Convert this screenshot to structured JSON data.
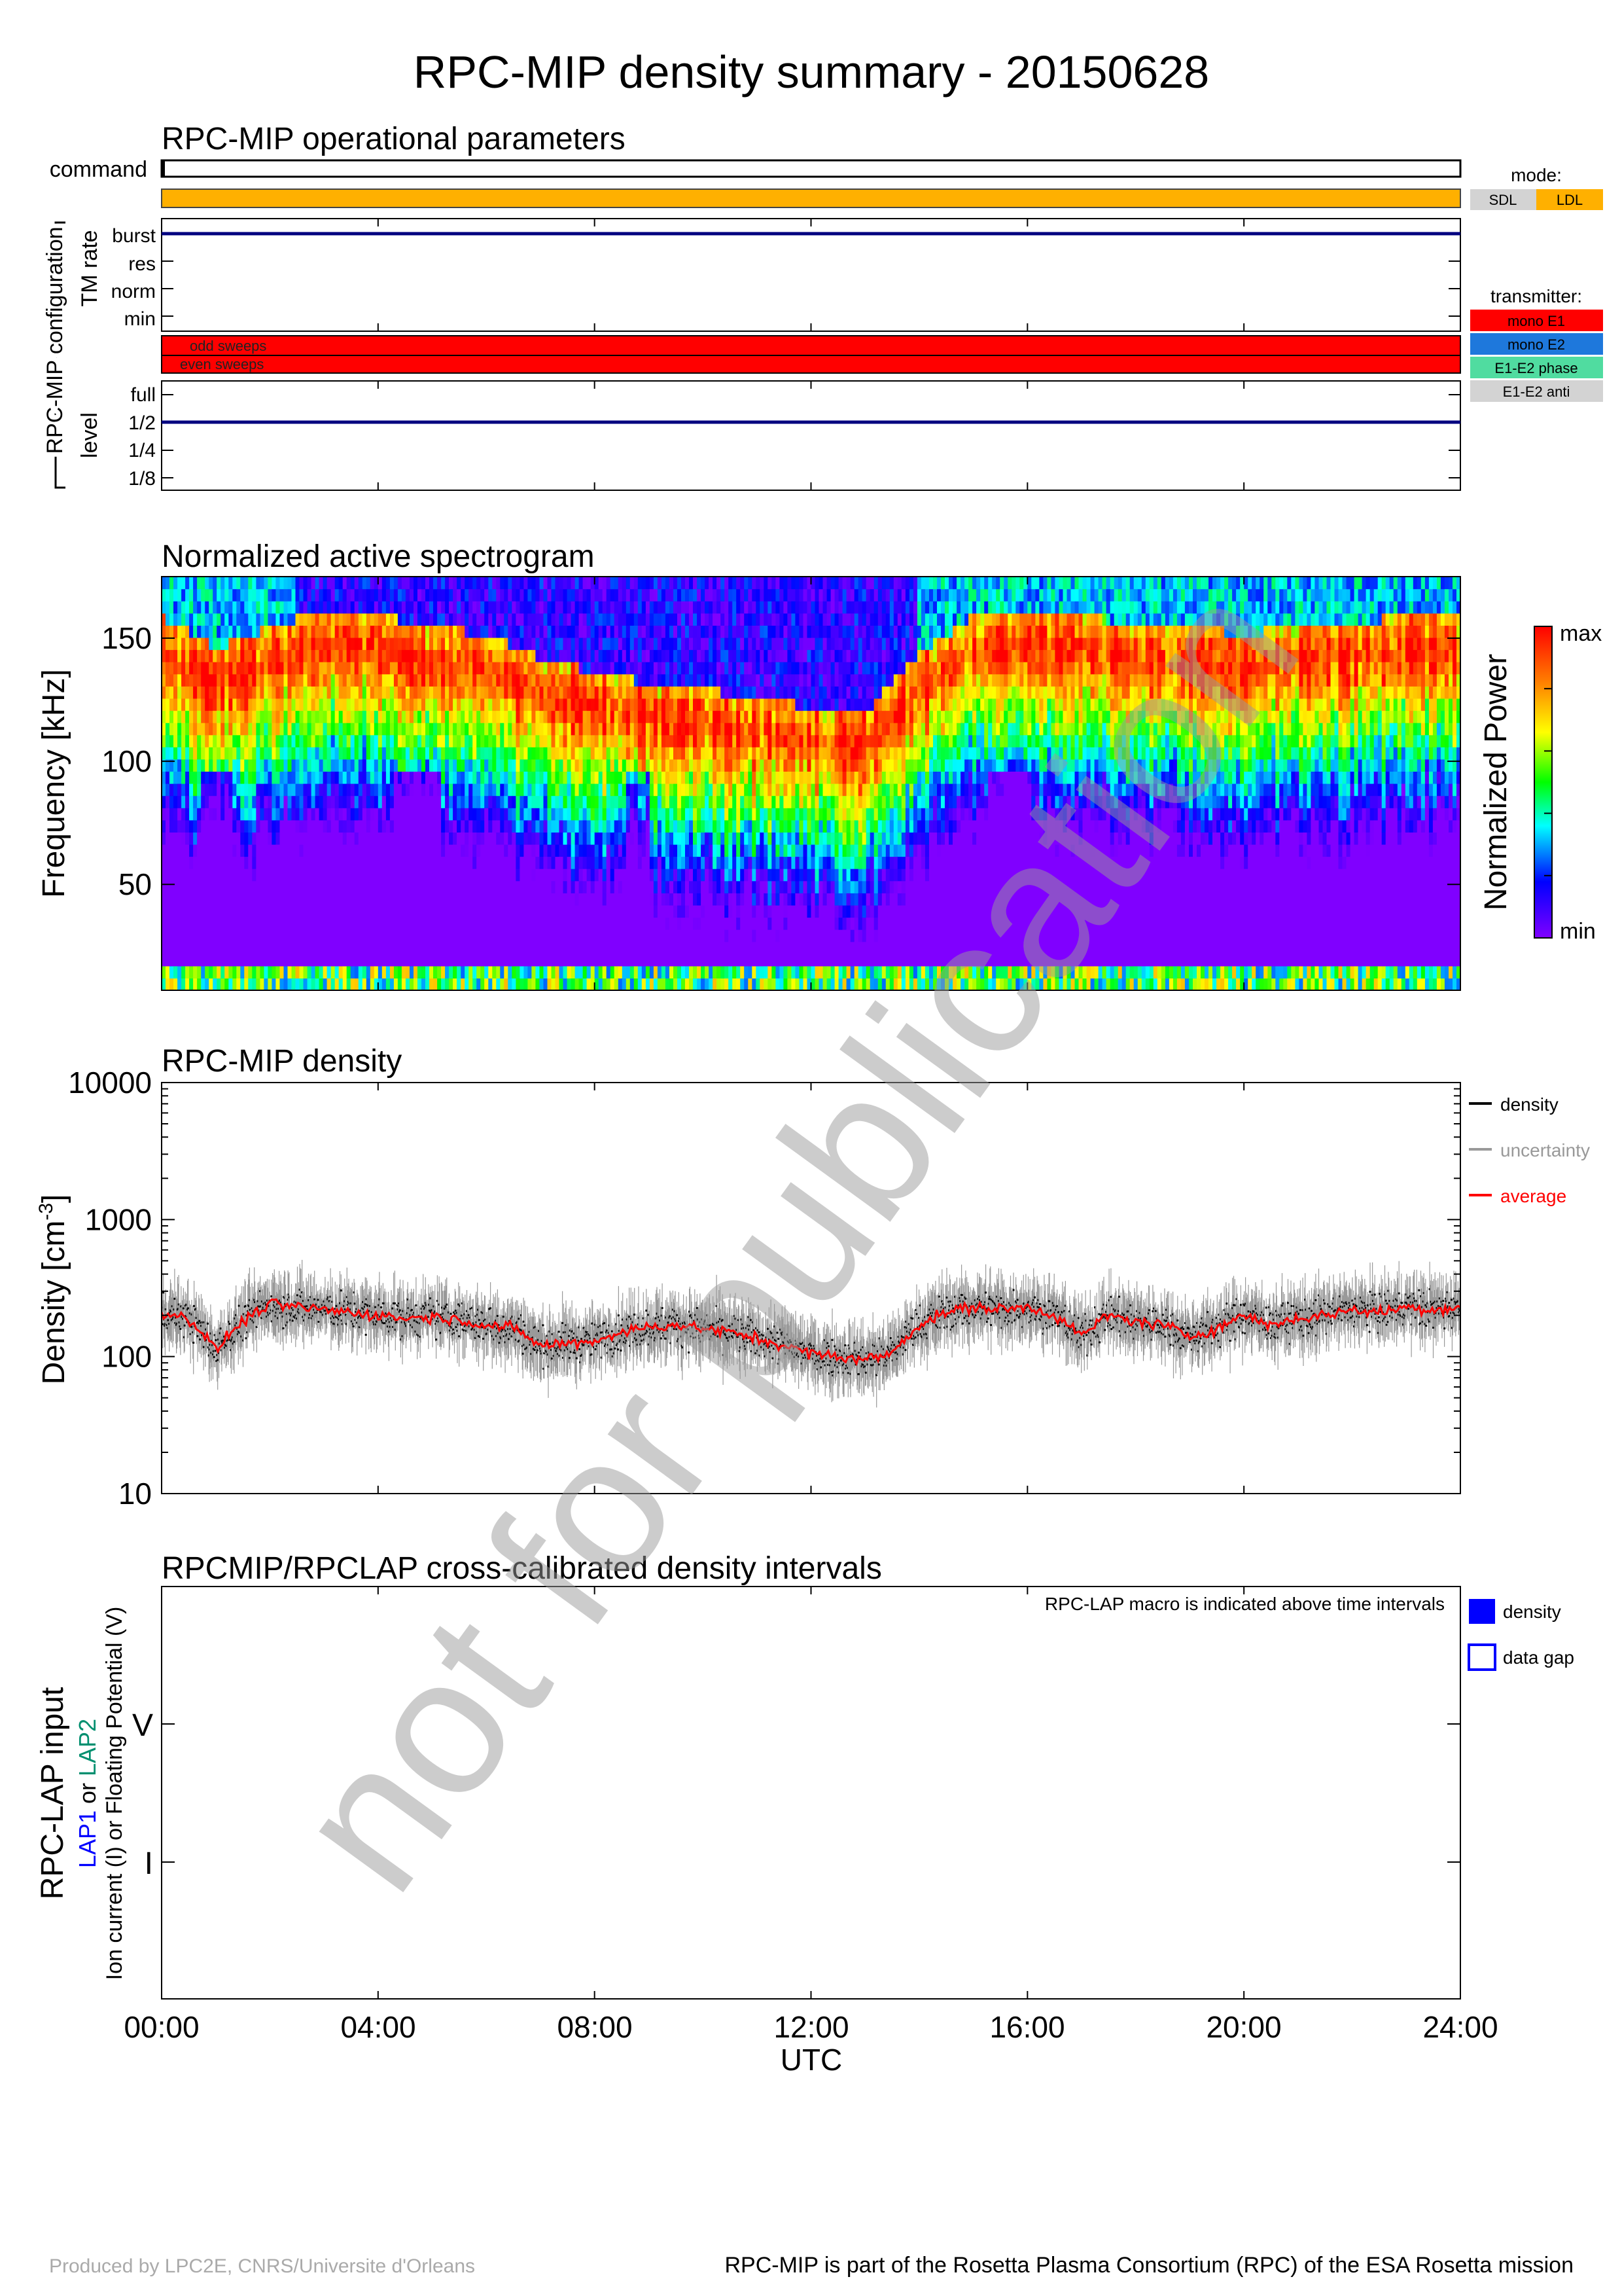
{
  "title": "RPC-MIP density summary - 20150628",
  "watermark": "not for publication",
  "footer": {
    "left": "Produced by LPC2E, CNRS/Universite d'Orleans",
    "right": "RPC-MIP is part of the Rosetta Plasma Consortium (RPC) of the ESA Rosetta mission"
  },
  "colors": {
    "ldl": "#ffb000",
    "sdl": "#d3d3d3",
    "mono_e1": "#ff0000",
    "mono_e2": "#1e78dc",
    "e1e2_phase": "#50dca0",
    "e1e2_anti": "#d3d3d3",
    "navy": "#00007f",
    "density": "#000000",
    "uncertainty": "#999999",
    "average": "#ff0000",
    "gap": "#0000ff"
  },
  "chart_data": [
    {
      "type": "table",
      "title": "RPC-MIP operational parameters",
      "command_label": "command",
      "configuration_label": "RPC-MIP configuration",
      "tm_rate": {
        "label": "TM rate",
        "levels": [
          "burst",
          "res",
          "norm",
          "min"
        ],
        "value": "burst"
      },
      "sweeps": {
        "odd": "odd sweeps",
        "even": "even sweeps",
        "transmitter": "mono E1"
      },
      "level": {
        "label": "level",
        "levels": [
          "full",
          "1/2",
          "1/4",
          "1/8"
        ],
        "value": "1/2"
      },
      "mode": {
        "label": "mode:",
        "entries": [
          "SDL",
          "LDL"
        ],
        "value": "LDL"
      },
      "transmitter": {
        "label": "transmitter:",
        "entries": [
          "mono E1",
          "mono E2",
          "E1-E2 phase",
          "E1-E2 anti"
        ]
      }
    },
    {
      "type": "heatmap",
      "title": "Normalized active spectrogram",
      "ylabel": "Frequency [kHz]",
      "ylim": [
        7,
        175
      ],
      "yticks": [
        50,
        100,
        150
      ],
      "colorbar": {
        "label": "Normalized Power",
        "max": "max",
        "min": "min"
      },
      "ridge": {
        "x": [
          0,
          1,
          2,
          3,
          4,
          5,
          6,
          7,
          8,
          9,
          10,
          11,
          12,
          13,
          14,
          15,
          16,
          17,
          18,
          19,
          20,
          21,
          22,
          23,
          24
        ],
        "y": [
          145,
          132,
          140,
          148,
          146,
          140,
          138,
          128,
          122,
          118,
          115,
          112,
          108,
          106,
          130,
          145,
          148,
          145,
          142,
          140,
          138,
          140,
          142,
          145,
          145
        ]
      }
    },
    {
      "type": "line",
      "title": "RPC-MIP density",
      "ylabel": "Density [cm",
      "ylabel_sup": "-3",
      "ylabel_end": "]",
      "yscale": "log",
      "ylim": [
        10,
        10000
      ],
      "yticks": [
        "10",
        "100",
        "1000",
        "10000"
      ],
      "series": [
        {
          "name": "density"
        },
        {
          "name": "uncertainty"
        },
        {
          "name": "average",
          "x": [
            0,
            0.5,
            1.0,
            1.5,
            2.0,
            2.5,
            3.0,
            3.5,
            4.0,
            4.5,
            5.0,
            5.5,
            6.0,
            6.5,
            7.0,
            7.5,
            8.0,
            8.5,
            9.0,
            9.5,
            10.0,
            10.5,
            11.0,
            11.5,
            12.0,
            12.5,
            13.0,
            13.5,
            14.0,
            14.5,
            15.0,
            15.5,
            16.0,
            16.5,
            17.0,
            17.5,
            18.0,
            18.5,
            19.0,
            19.5,
            20.0,
            20.5,
            21.0,
            21.5,
            22.0,
            22.5,
            23.0,
            23.5,
            24.0
          ],
          "values": [
            210,
            190,
            110,
            180,
            240,
            230,
            220,
            210,
            200,
            190,
            195,
            185,
            170,
            160,
            120,
            125,
            130,
            150,
            165,
            170,
            160,
            150,
            135,
            120,
            105,
            100,
            95,
            105,
            170,
            210,
            230,
            220,
            230,
            200,
            140,
            200,
            180,
            170,
            140,
            160,
            200,
            170,
            190,
            200,
            220,
            210,
            230,
            220,
            230
          ]
        }
      ]
    },
    {
      "type": "bar",
      "title": "RPCMIP/RPCLAP cross-calibrated density intervals",
      "ylabel": "RPC-LAP input",
      "ylabel2": [
        "LAP1",
        " or ",
        "LAP2"
      ],
      "ylabel3": "Ion current (I) or Floating Potential (V)",
      "categories": [
        "V",
        "I"
      ],
      "annotation": "RPC-LAP macro is indicated above time intervals",
      "legend": [
        "density",
        "data gap"
      ],
      "xlabel": "UTC",
      "xticks": [
        "00:00",
        "04:00",
        "08:00",
        "12:00",
        "16:00",
        "20:00",
        "24:00"
      ],
      "xlim": [
        0,
        24
      ]
    }
  ]
}
